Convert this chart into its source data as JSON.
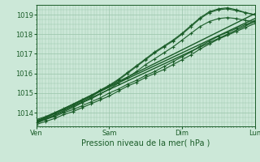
{
  "background_color": "#cce8d8",
  "grid_color": "#99c4aa",
  "line_color": "#1a5c28",
  "xlabel": "Pression niveau de la mer( hPa )",
  "xlim": [
    0,
    72
  ],
  "ylim": [
    1013.3,
    1019.5
  ],
  "yticks": [
    1014,
    1015,
    1016,
    1017,
    1018,
    1019
  ],
  "xtick_positions": [
    0,
    24,
    48,
    72
  ],
  "xtick_labels": [
    "Ven",
    "Sam",
    "Dim",
    "Lun"
  ],
  "figsize": [
    3.2,
    2.0
  ],
  "dpi": 100,
  "series": [
    {
      "x": [
        0,
        3,
        6,
        9,
        12,
        15,
        18,
        21,
        24,
        27,
        30,
        33,
        36,
        39,
        42,
        45,
        48,
        51,
        54,
        57,
        60,
        63,
        66,
        69,
        72
      ],
      "y": [
        1013.5,
        1013.65,
        1013.8,
        1014.0,
        1014.15,
        1014.35,
        1014.55,
        1014.75,
        1015.0,
        1015.2,
        1015.45,
        1015.65,
        1015.9,
        1016.1,
        1016.35,
        1016.6,
        1016.85,
        1017.1,
        1017.4,
        1017.65,
        1017.9,
        1018.1,
        1018.3,
        1018.5,
        1018.7
      ],
      "marker": "+",
      "lw": 0.8
    },
    {
      "x": [
        0,
        3,
        6,
        9,
        12,
        15,
        18,
        21,
        24,
        27,
        30,
        33,
        36,
        39,
        42,
        45,
        48,
        51,
        54,
        57,
        60,
        63,
        66,
        69,
        72
      ],
      "y": [
        1013.55,
        1013.7,
        1013.85,
        1014.05,
        1014.25,
        1014.5,
        1014.7,
        1014.95,
        1015.2,
        1015.5,
        1015.8,
        1016.1,
        1016.45,
        1016.75,
        1017.05,
        1017.35,
        1017.7,
        1018.05,
        1018.4,
        1018.65,
        1018.8,
        1018.85,
        1018.8,
        1018.7,
        1018.65
      ],
      "marker": "+",
      "lw": 0.8
    },
    {
      "x": [
        0,
        3,
        6,
        9,
        12,
        15,
        18,
        21,
        24,
        27,
        30,
        33,
        36,
        39,
        42,
        45,
        48,
        51,
        54,
        57,
        60,
        63,
        66,
        69,
        72
      ],
      "y": [
        1013.6,
        1013.75,
        1013.95,
        1014.15,
        1014.35,
        1014.6,
        1014.8,
        1015.1,
        1015.35,
        1015.65,
        1016.0,
        1016.35,
        1016.7,
        1017.05,
        1017.35,
        1017.65,
        1018.0,
        1018.4,
        1018.8,
        1019.1,
        1019.25,
        1019.3,
        1019.2,
        1019.1,
        1019.0
      ],
      "marker": "+",
      "lw": 0.8
    },
    {
      "x": [
        0,
        3,
        6,
        9,
        12,
        15,
        18,
        21,
        24,
        27,
        30,
        33,
        36,
        39,
        42,
        45,
        48,
        51,
        54,
        57,
        60,
        63,
        66,
        69,
        72
      ],
      "y": [
        1013.65,
        1013.8,
        1014.0,
        1014.2,
        1014.4,
        1014.65,
        1014.85,
        1015.15,
        1015.4,
        1015.7,
        1016.05,
        1016.4,
        1016.75,
        1017.1,
        1017.4,
        1017.7,
        1018.05,
        1018.45,
        1018.85,
        1019.15,
        1019.3,
        1019.35,
        1019.25,
        1019.1,
        1019.0
      ],
      "marker": "+",
      "lw": 0.8
    },
    {
      "x": [
        0,
        3,
        6,
        9,
        12,
        15,
        18,
        21,
        24,
        27,
        30,
        33,
        36,
        39,
        42,
        45,
        48,
        51,
        54,
        57,
        60,
        63,
        66,
        69,
        72
      ],
      "y": [
        1013.4,
        1013.55,
        1013.7,
        1013.9,
        1014.05,
        1014.25,
        1014.45,
        1014.65,
        1014.85,
        1015.1,
        1015.35,
        1015.55,
        1015.8,
        1016.0,
        1016.2,
        1016.45,
        1016.7,
        1016.95,
        1017.25,
        1017.5,
        1017.75,
        1017.95,
        1018.15,
        1018.35,
        1018.55
      ],
      "marker": "+",
      "lw": 0.8
    },
    {
      "x": [
        0,
        72
      ],
      "y": [
        1013.45,
        1018.65
      ],
      "marker": null,
      "lw": 1.0
    },
    {
      "x": [
        0,
        72
      ],
      "y": [
        1013.55,
        1018.8
      ],
      "marker": null,
      "lw": 1.0
    },
    {
      "x": [
        0,
        72
      ],
      "y": [
        1013.5,
        1019.05
      ],
      "marker": null,
      "lw": 1.0
    }
  ]
}
